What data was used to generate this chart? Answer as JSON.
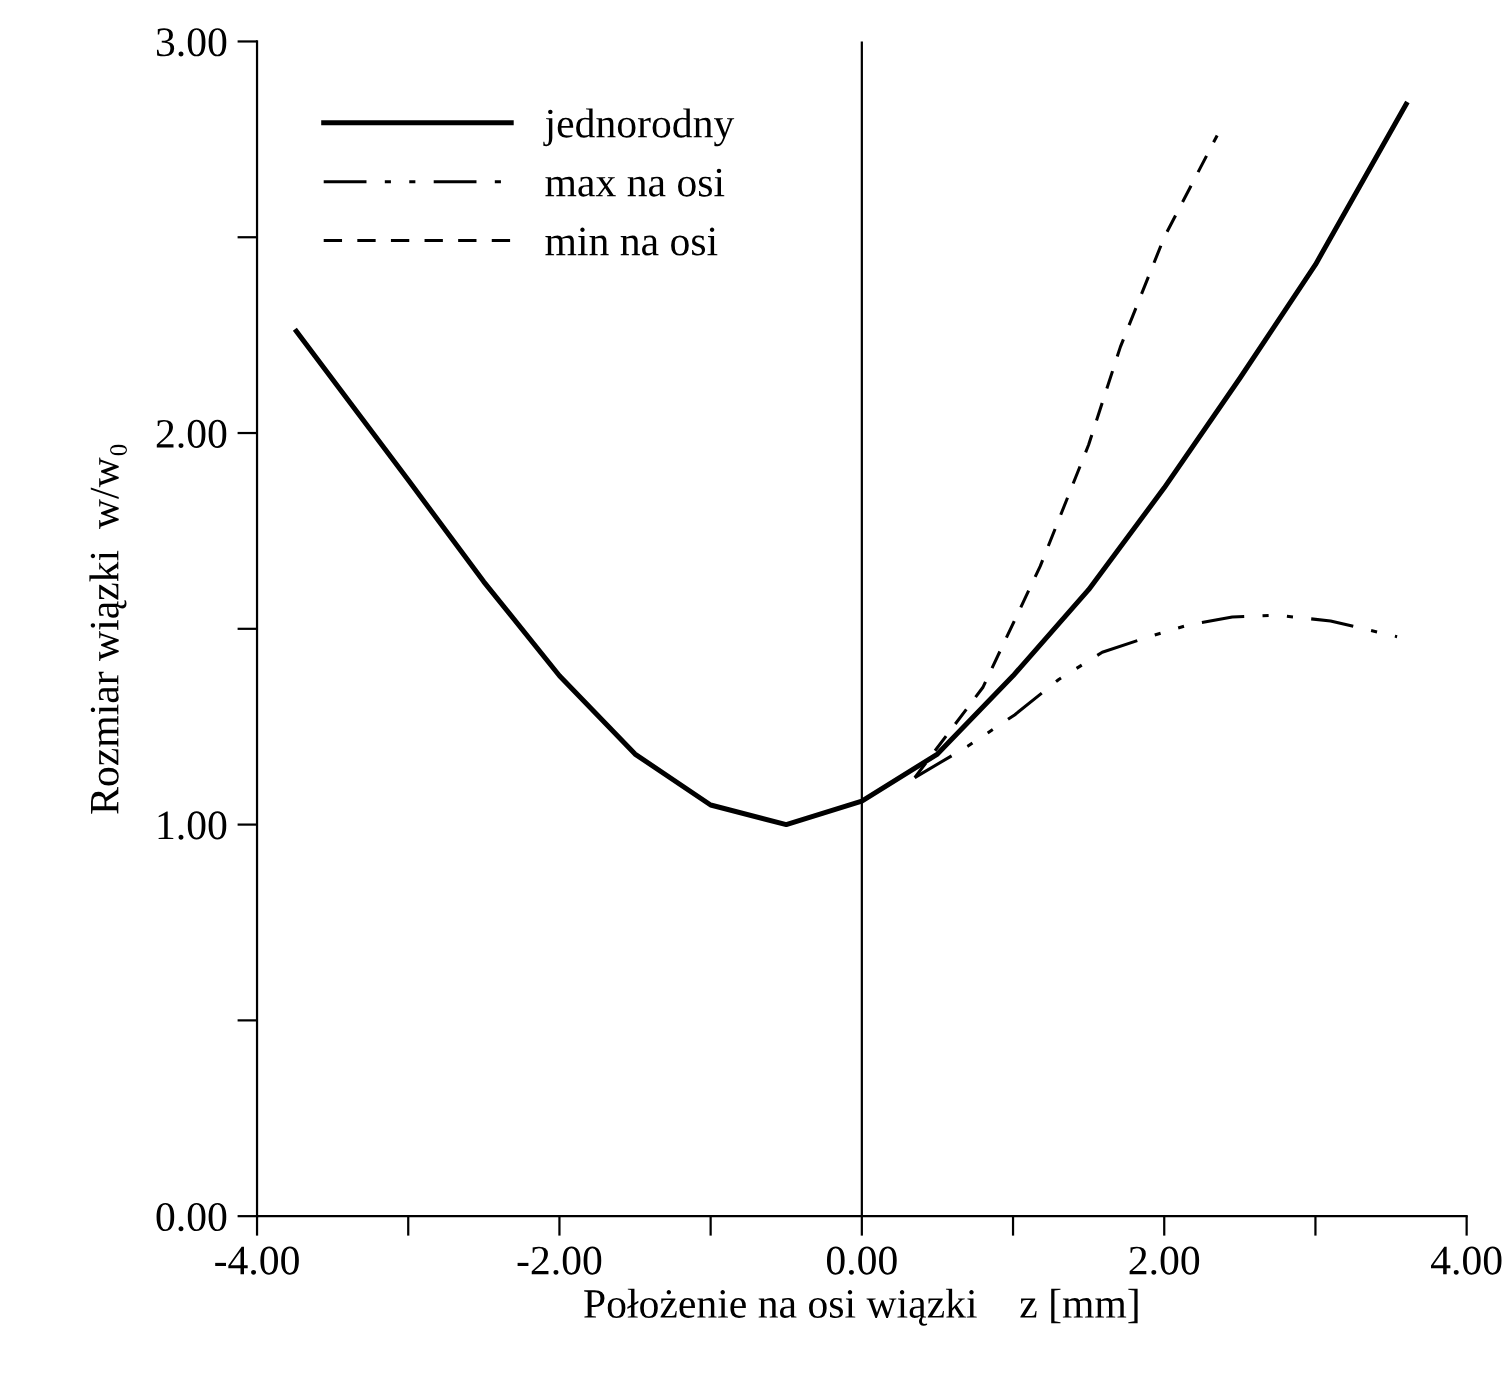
{
  "chart_data": {
    "type": "line",
    "xlabel": "Położenie na osi wiązki    z [mm]",
    "ylabel": "Rozmiar wiązki  w/w₀",
    "xlim": [
      -4,
      4
    ],
    "ylim": [
      0,
      3
    ],
    "xticks": [
      {
        "value": -4,
        "label": "-4.00"
      },
      {
        "value": -3,
        "label": null
      },
      {
        "value": -2,
        "label": "-2.00"
      },
      {
        "value": -1,
        "label": null
      },
      {
        "value": 0,
        "label": "0.00"
      },
      {
        "value": 1,
        "label": null
      },
      {
        "value": 2,
        "label": "2.00"
      },
      {
        "value": 3,
        "label": null
      },
      {
        "value": 4,
        "label": "4.00"
      }
    ],
    "yticks": [
      {
        "value": 0,
        "label": "0.00"
      },
      {
        "value": 0.5,
        "label": null
      },
      {
        "value": 1,
        "label": "1.00"
      },
      {
        "value": 1.5,
        "label": null
      },
      {
        "value": 2,
        "label": "2.00"
      },
      {
        "value": 2.5,
        "label": null
      },
      {
        "value": 3,
        "label": "3.00"
      }
    ],
    "ref_lines": [
      {
        "axis": "x",
        "value": 0,
        "color": "#000000",
        "line_style": "solid"
      }
    ],
    "legend": "top left",
    "grid": false,
    "marker": "none",
    "series": [
      {
        "name": "jednorodny",
        "color": "#000000",
        "line_style": "solid",
        "x": [
          -3.74,
          -3.0,
          -2.5,
          -2.0,
          -1.5,
          -1.0,
          -0.5,
          0.0,
          0.5,
          1.0,
          1.5,
          2.0,
          2.5,
          3.0,
          3.6
        ],
        "values": [
          2.26,
          1.88,
          1.62,
          1.38,
          1.18,
          1.05,
          1.0,
          1.06,
          1.18,
          1.38,
          1.6,
          1.86,
          2.14,
          2.43,
          2.84
        ]
      },
      {
        "name": "max na osi",
        "color": "#000000",
        "line_style": "dashdot",
        "x": [
          0.35,
          0.7,
          1.01,
          1.3,
          1.59,
          1.9,
          2.16,
          2.45,
          2.74,
          3.1,
          3.54
        ],
        "values": [
          1.12,
          1.2,
          1.28,
          1.37,
          1.44,
          1.48,
          1.51,
          1.53,
          1.535,
          1.52,
          1.48
        ]
      },
      {
        "name": "min na osi",
        "color": "#000000",
        "line_style": "dashed",
        "x": [
          0.35,
          0.8,
          1.18,
          1.5,
          1.71,
          2.0,
          2.35
        ],
        "values": [
          1.12,
          1.35,
          1.66,
          1.97,
          2.22,
          2.5,
          2.76
        ]
      }
    ]
  }
}
